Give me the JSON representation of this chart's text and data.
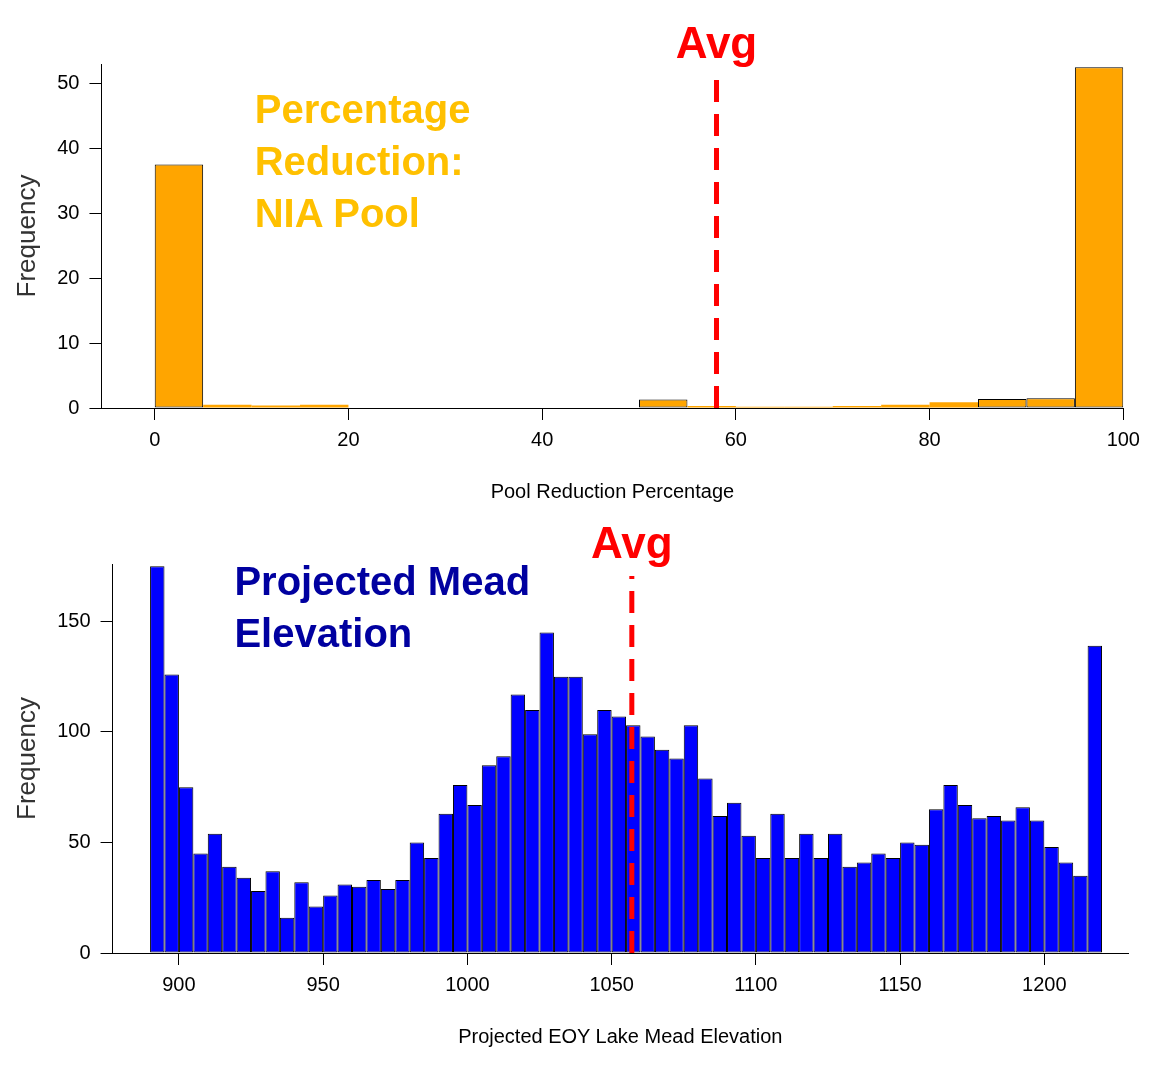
{
  "chart_data": [
    {
      "type": "histogram",
      "xlabel": "Pool Reduction Percentage",
      "ylabel": "Frequency",
      "annotations": [
        "Percentage Reduction: NIA Pool"
      ],
      "bins": [
        0,
        5,
        10,
        15,
        20,
        25,
        30,
        35,
        40,
        45,
        50,
        55,
        60,
        65,
        70,
        75,
        80,
        85,
        90,
        95,
        100
      ],
      "values": [
        37.5,
        0.5,
        0.4,
        0.5,
        0,
        0,
        0,
        0,
        0,
        0,
        1.3,
        0.3,
        0.2,
        0.2,
        0.3,
        0.5,
        0.9,
        1.4,
        1.5,
        52.5
      ],
      "color": "#ffa500",
      "xlim": [
        -5.5,
        100
      ],
      "xticks": [
        0,
        20,
        40,
        60,
        80,
        100
      ],
      "ylim": [
        0,
        53
      ],
      "yticks": [
        0,
        10,
        20,
        30,
        40,
        50
      ],
      "grid": false,
      "legend": false,
      "ref_lines": [
        {
          "axis": "x",
          "value": 58,
          "label": "Avg",
          "color": "#ff0000",
          "line_style": "dashed"
        }
      ]
    },
    {
      "type": "histogram",
      "xlabel": "Projected EOY Lake Mead Elevation",
      "ylabel": "Frequency",
      "annotations": [
        "Projected Mead Elevation"
      ],
      "bins": [
        890,
        895,
        900,
        905,
        910,
        915,
        920,
        925,
        930,
        935,
        940,
        945,
        950,
        955,
        960,
        965,
        970,
        975,
        980,
        985,
        990,
        995,
        1000,
        1005,
        1010,
        1015,
        1020,
        1025,
        1030,
        1035,
        1040,
        1045,
        1050,
        1055,
        1060,
        1065,
        1070,
        1075,
        1080,
        1085,
        1090,
        1095,
        1100,
        1105,
        1110,
        1115,
        1120,
        1125,
        1130,
        1135,
        1140,
        1145,
        1150,
        1155,
        1160,
        1165,
        1170,
        1175,
        1180,
        1185,
        1190,
        1195,
        1200,
        1205,
        1210,
        1215,
        1220
      ],
      "values": [
        175,
        126,
        75,
        45,
        54,
        39,
        34,
        28,
        37,
        16,
        32,
        21,
        26,
        31,
        30,
        33,
        29,
        33,
        50,
        43,
        63,
        76,
        67,
        85,
        89,
        117,
        110,
        145,
        125,
        125,
        99,
        110,
        107,
        103,
        98,
        92,
        88,
        103,
        79,
        62,
        68,
        53,
        43,
        63,
        43,
        54,
        43,
        54,
        39,
        41,
        45,
        43,
        50,
        49,
        65,
        76,
        67,
        61,
        62,
        60,
        66,
        60,
        48,
        41,
        35,
        139
      ],
      "color": "#0000ff",
      "xlim": [
        877,
        1229
      ],
      "xticks": [
        900,
        950,
        1000,
        1050,
        1100,
        1150,
        1200
      ],
      "ylim": [
        0,
        176
      ],
      "yticks": [
        0,
        50,
        100,
        150
      ],
      "grid": false,
      "legend": false,
      "ref_lines": [
        {
          "axis": "x",
          "value": 1057,
          "label": "Avg",
          "color": "#ff0000",
          "line_style": "dashed"
        }
      ]
    }
  ]
}
